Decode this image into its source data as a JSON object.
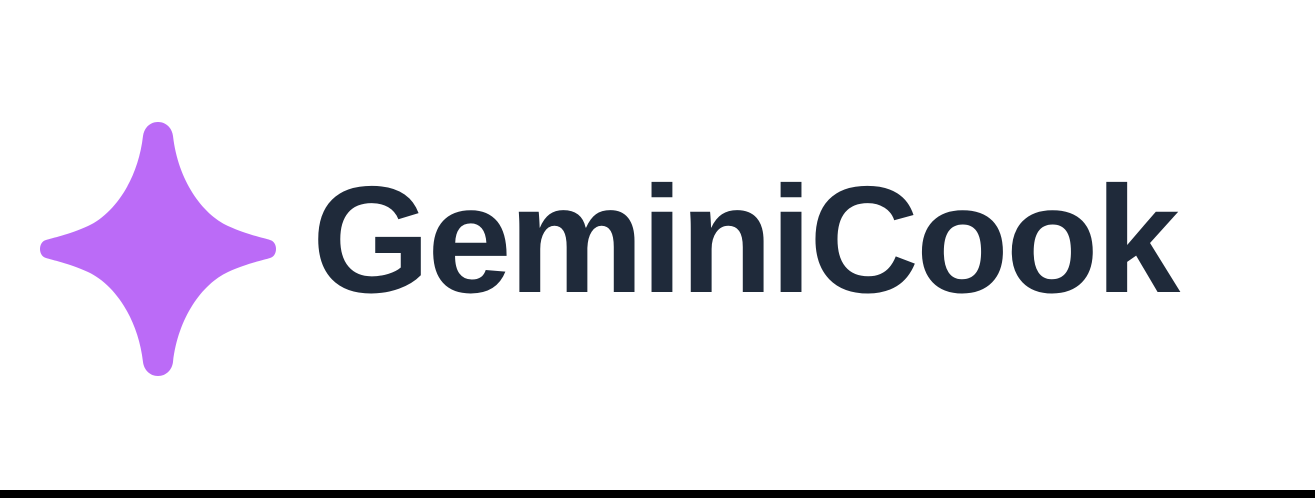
{
  "logo": {
    "wordmark": "GeminiCook",
    "icon": "sparkle-icon",
    "colors": {
      "icon": "#BB6BF7",
      "text": "#1F2A3A",
      "background": "#FFFFFF",
      "bottom_border": "#000000"
    }
  }
}
